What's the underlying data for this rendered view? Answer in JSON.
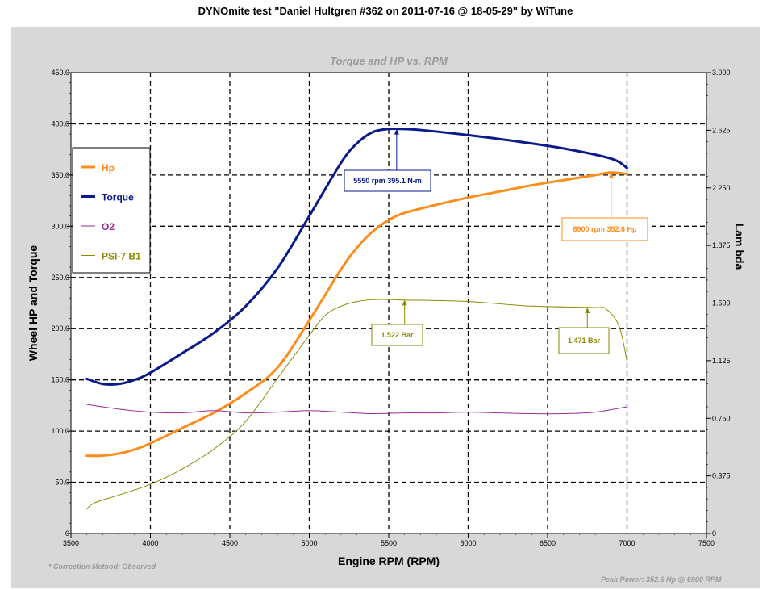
{
  "chart_data": {
    "type": "line",
    "title": "DYNOmite test \"Daniel Hultgren #362 on 2011-07-16 @ 18-05-29\" by WiTune",
    "subtitle": "Torque and HP vs. RPM",
    "xlabel": "Engine RPM (RPM)",
    "ylabel": "Wheel HP and Torque",
    "y2label": "Lam bda",
    "xlim": [
      3500,
      7500
    ],
    "ylim": [
      0,
      450
    ],
    "y2lim": [
      0,
      3
    ],
    "grid": true,
    "x_ticks": [
      "3500",
      "4000",
      "4500",
      "5000",
      "5500",
      "6000",
      "6500",
      "7000",
      "7500"
    ],
    "y_ticks": [
      "0",
      "50.0",
      "100.0",
      "150.0",
      "200.0",
      "250.0",
      "300.0",
      "350.0",
      "400.0",
      "450.0"
    ],
    "y2_ticks": [
      "0",
      "0.375",
      "0.750",
      "1.125",
      "1.500",
      "1.875",
      "2.250",
      "2.625",
      "3.000"
    ],
    "legend_position": "left",
    "series": [
      {
        "name": "Hp",
        "axis": "left",
        "color": "#ff8c1a",
        "width": 3,
        "x": [
          3600,
          3700,
          3800,
          3900,
          4000,
          4200,
          4400,
          4600,
          4800,
          5000,
          5200,
          5300,
          5400,
          5500,
          5600,
          5800,
          6000,
          6200,
          6400,
          6600,
          6800,
          6900,
          7000
        ],
        "y": [
          76,
          76,
          78,
          82,
          88,
          103,
          118,
          137,
          162,
          208,
          258,
          279,
          295,
          306,
          313,
          321,
          328,
          334,
          340,
          345,
          350,
          352.6,
          351
        ]
      },
      {
        "name": "Torque",
        "axis": "left",
        "color": "#0a1a8c",
        "width": 3,
        "x": [
          3600,
          3700,
          3800,
          3900,
          4000,
          4200,
          4400,
          4600,
          4800,
          5000,
          5200,
          5300,
          5400,
          5500,
          5550,
          5700,
          6000,
          6300,
          6600,
          6900,
          7000
        ],
        "y": [
          151,
          146,
          146,
          150,
          157,
          176,
          196,
          222,
          259,
          310,
          362,
          381,
          392,
          395,
          395.1,
          394,
          389,
          383,
          376,
          366,
          357
        ]
      },
      {
        "name": "O2",
        "axis": "right",
        "color": "#9a2a9a",
        "width": 1,
        "x": [
          3600,
          3800,
          4000,
          4200,
          4400,
          4600,
          4800,
          5000,
          5200,
          5400,
          5600,
          5800,
          6000,
          6200,
          6400,
          6600,
          6800,
          7000
        ],
        "y": [
          0.84,
          0.81,
          0.79,
          0.785,
          0.8,
          0.785,
          0.79,
          0.8,
          0.79,
          0.78,
          0.785,
          0.785,
          0.79,
          0.785,
          0.78,
          0.78,
          0.79,
          0.825
        ]
      },
      {
        "name": "PSI-7 B1",
        "axis": "right",
        "color": "#8a8a00",
        "width": 1,
        "x": [
          3600,
          3650,
          3800,
          4000,
          4200,
          4400,
          4600,
          4800,
          5000,
          5100,
          5200,
          5300,
          5400,
          5500,
          5600,
          6000,
          6400,
          6800,
          6870,
          6950,
          7000
        ],
        "y": [
          0.16,
          0.2,
          0.25,
          0.32,
          0.42,
          0.55,
          0.73,
          1.01,
          1.29,
          1.42,
          1.48,
          1.51,
          1.522,
          1.523,
          1.52,
          1.51,
          1.48,
          1.471,
          1.46,
          1.35,
          1.12
        ]
      }
    ],
    "annotations": [
      {
        "text": "5550 rpm 395.1 N-m",
        "series": "Torque",
        "x": 5550,
        "y": 395.1,
        "axis": "left"
      },
      {
        "text": "6900 rpm 352.6 Hp",
        "series": "Hp",
        "x": 6900,
        "y": 352.6,
        "axis": "left"
      },
      {
        "text": "1.522 Bar",
        "series": "PSI-7 B1",
        "x": 5600,
        "y": 1.522,
        "axis": "right"
      },
      {
        "text": "1.471 Bar",
        "series": "PSI-7 B1",
        "x": 6750,
        "y": 1.471,
        "axis": "right"
      }
    ],
    "footnote_left": "* Correction Method: Observed",
    "footnote_right": "Peak Power: 352.6 Hp @ 6900 RPM"
  }
}
